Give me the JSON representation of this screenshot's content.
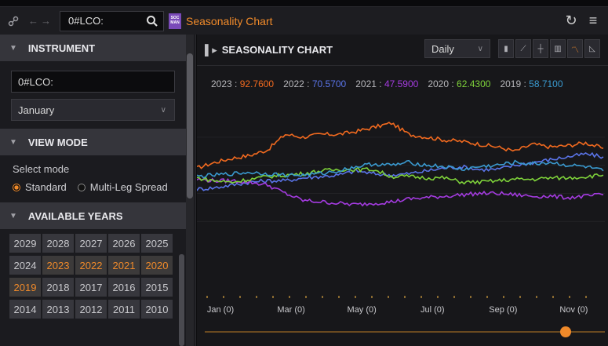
{
  "topbar": {
    "search_value": "0#LCO:",
    "app_badge": "SOC MAN",
    "app_title": "Seasonality Chart",
    "icons": [
      "link-icon",
      "back-forward-icon",
      "search-icon",
      "refresh-icon",
      "menu-icon"
    ]
  },
  "instrument": {
    "header": "INSTRUMENT",
    "ric_value": "0#LCO:",
    "month_value": "January"
  },
  "view_mode": {
    "header": "VIEW MODE",
    "label": "Select mode",
    "options": [
      "Standard",
      "Multi-Leg Spread"
    ],
    "selected": "Standard"
  },
  "years": {
    "header": "AVAILABLE YEARS",
    "rows": [
      [
        "2029",
        "2028",
        "2027",
        "2026",
        "2025"
      ],
      [
        "2024",
        "2023",
        "2022",
        "2021",
        "2020"
      ],
      [
        "2019",
        "2018",
        "2017",
        "2016",
        "2015"
      ],
      [
        "2014",
        "2013",
        "2012",
        "2011",
        "2010"
      ]
    ],
    "selected": [
      "2023",
      "2022",
      "2021",
      "2020",
      "2019"
    ]
  },
  "chart_header": {
    "title": "SEASONALITY CHART",
    "period": "Daily"
  },
  "colors": {
    "accent": "#f08a2a",
    "2023": "#f26a1f",
    "2022": "#5a74e8",
    "2021": "#a43be0",
    "2020": "#7ed23a",
    "2019": "#3a9ad0"
  },
  "chart_data": {
    "type": "line",
    "legend": [
      {
        "year": "2023",
        "sep": " : ",
        "value": "92.7600"
      },
      {
        "year": "2022",
        "sep": " : ",
        "value": "70.5700"
      },
      {
        "year": "2021",
        "sep": " : ",
        "value": "47.5900"
      },
      {
        "year": "2020",
        "sep": " : ",
        "value": "62.4300"
      },
      {
        "year": "2019",
        "sep": " : ",
        "value": "58.7100"
      }
    ],
    "x_ticks": [
      "Jan (0)",
      "Mar (0)",
      "May (0)",
      "Jul (0)",
      "Sep (0)",
      "Nov (0)"
    ],
    "x_tick_months": [
      0,
      2,
      4,
      6,
      8,
      10
    ],
    "x_range": [
      0,
      11.5
    ],
    "y_range": [
      40,
      100
    ],
    "series": [
      {
        "name": "2023",
        "x": [
          0,
          0.5,
          1,
          1.5,
          2,
          2.5,
          3,
          3.5,
          4,
          4.5,
          5,
          5.5,
          6,
          6.5,
          7,
          7.5,
          8,
          8.5,
          9,
          9.5,
          10,
          10.5,
          11,
          11.5
        ],
        "y": [
          79,
          81,
          82.5,
          83.5,
          85.5,
          91,
          90,
          91,
          91,
          92,
          93.5,
          95,
          91,
          90,
          89,
          88.5,
          87.5,
          86.5,
          85,
          87.5,
          86.5,
          87,
          88,
          86
        ]
      },
      {
        "name": "2022",
        "x": [
          0,
          0.5,
          1,
          1.5,
          2,
          2.5,
          3,
          3.5,
          4,
          4.5,
          5,
          5.5,
          6,
          6.5,
          7,
          7.5,
          8,
          8.5,
          9,
          9.5,
          10,
          10.5,
          11,
          11.5
        ],
        "y": [
          71.5,
          72,
          73,
          74,
          74.5,
          74.5,
          75.5,
          76,
          76.5,
          78,
          77,
          76.5,
          77,
          78,
          79,
          79.5,
          78.5,
          78.5,
          80,
          81,
          82,
          83,
          84,
          83
        ]
      },
      {
        "name": "2021",
        "x": [
          0,
          0.5,
          1,
          1.5,
          2,
          2.5,
          3,
          3.5,
          4,
          4.5,
          5,
          5.5,
          6,
          6.5,
          7,
          7.5,
          8,
          8.5,
          9,
          9.5,
          10,
          10.5,
          11,
          11.5
        ],
        "y": [
          75,
          74.5,
          74.5,
          74,
          73,
          70,
          67.5,
          67,
          66.5,
          66,
          66.5,
          67,
          68,
          68.5,
          69,
          69.5,
          70,
          70,
          69.5,
          69,
          69,
          68.5,
          69,
          69.5
        ]
      },
      {
        "name": "2020",
        "x": [
          0,
          0.5,
          1,
          1.5,
          2,
          2.5,
          3,
          3.5,
          4,
          4.5,
          5,
          5.5,
          6,
          6.5,
          7,
          7.5,
          8,
          8.5,
          9,
          9.5,
          10,
          10.5,
          11,
          11.5
        ],
        "y": [
          75.5,
          74.5,
          74,
          75,
          76,
          76.5,
          77,
          78,
          78.5,
          78.5,
          78.5,
          76,
          76,
          75.5,
          75.5,
          74,
          74,
          74.5,
          75,
          75,
          75.5,
          75.5,
          76,
          76.5
        ]
      },
      {
        "name": "2019",
        "x": [
          0,
          0.5,
          1,
          1.5,
          2,
          2.5,
          3,
          3.5,
          4,
          4.5,
          5,
          5.5,
          6,
          6.5,
          7,
          7.5,
          8,
          8.5,
          9,
          9.5,
          10,
          10.5,
          11,
          11.5
        ],
        "y": [
          76,
          76.5,
          77,
          77.5,
          77,
          76.5,
          76.5,
          77,
          78,
          79.5,
          80.5,
          80,
          81,
          80,
          79.5,
          78.5,
          79.5,
          80,
          81,
          80.5,
          81,
          80,
          79.5,
          78
        ]
      }
    ]
  }
}
